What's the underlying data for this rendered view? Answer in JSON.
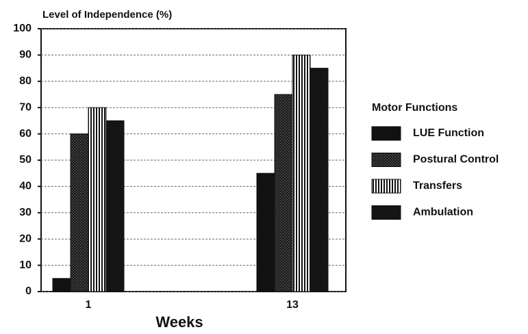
{
  "chart_data": {
    "type": "bar",
    "title": "Level of Independence (%)",
    "x_label": "Weeks",
    "categories": [
      "1",
      "13"
    ],
    "series": [
      {
        "name": "LUE Function",
        "color": "#111111",
        "pattern": "solid",
        "values": [
          5,
          45
        ]
      },
      {
        "name": "Postural Control",
        "color": "#2a2a2a",
        "pattern": "stipple",
        "values": [
          60,
          75
        ]
      },
      {
        "name": "Transfers",
        "color": "#111111",
        "pattern": "vstripe",
        "values": [
          70,
          90
        ]
      },
      {
        "name": "Ambulation",
        "color": "#151515",
        "pattern": "solid",
        "values": [
          65,
          85
        ]
      }
    ],
    "legend_title": "Motor Functions",
    "legend": "right",
    "ylim": [
      0,
      100
    ],
    "yticks": [
      0,
      10,
      20,
      30,
      40,
      50,
      60,
      70,
      80,
      90,
      100
    ],
    "grid": true
  }
}
